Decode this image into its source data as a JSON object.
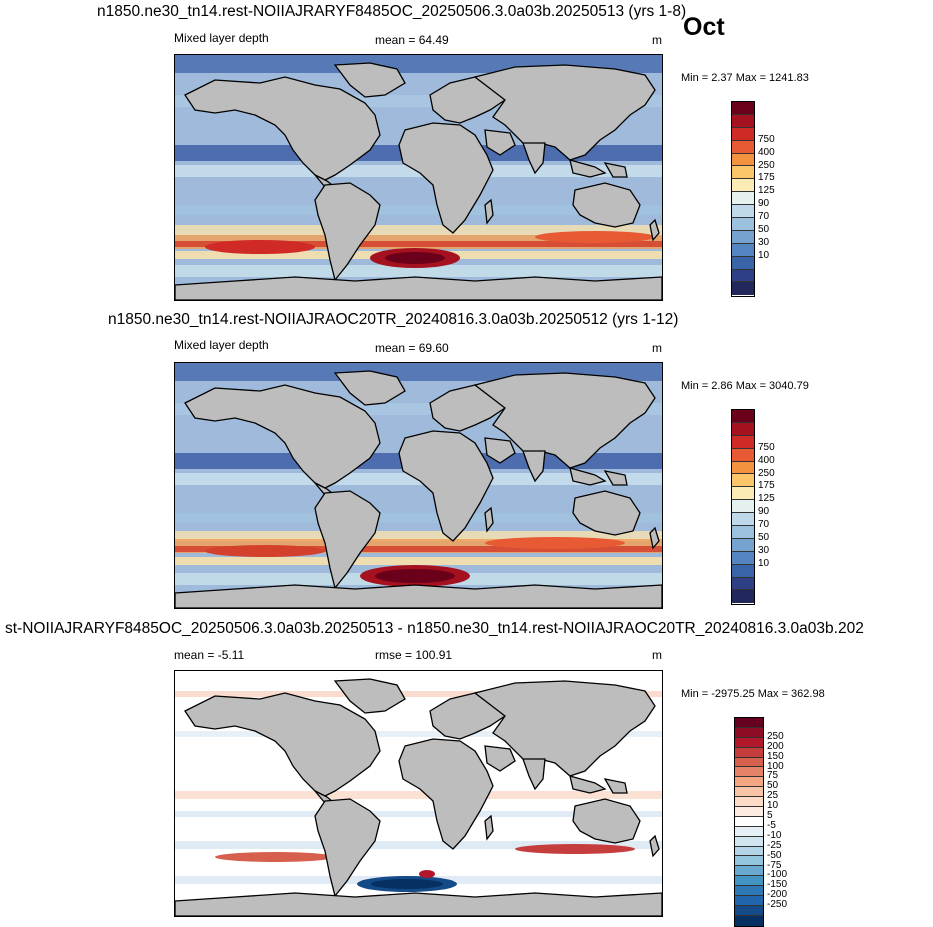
{
  "month": "Oct",
  "panels": [
    {
      "title": "n1850.ne30_tn14.rest-NOIIAJRARYF8485OC_20250506.3.0a03b.20250513 (yrs 1-8)",
      "left_label": "Mixed layer depth",
      "center_label": "mean =  64.49",
      "units": "m",
      "minmax": "Min =   2.37 Max = 1241.83",
      "colorbar": {
        "labels": [
          "750",
          "400",
          "250",
          "175",
          "125",
          "90",
          "70",
          "50",
          "30",
          "10"
        ],
        "colors": [
          "#6b001a",
          "#a5111f",
          "#cf2a25",
          "#e75a33",
          "#f3923f",
          "#fbc56a",
          "#fdebb5",
          "#e4f1ef",
          "#bfd9eb",
          "#9cc1de",
          "#76a2cf",
          "#5585c0",
          "#3a64a8",
          "#2e3f86",
          "#23285c"
        ]
      }
    },
    {
      "title": "n1850.ne30_tn14.rest-NOIIAJRAOC20TR_20240816.3.0a03b.20250512 (yrs 1-12)",
      "left_label": "Mixed layer depth",
      "center_label": "mean =  69.60",
      "units": "m",
      "minmax": "Min =   2.86 Max = 3040.79",
      "colorbar": {
        "labels": [
          "750",
          "400",
          "250",
          "175",
          "125",
          "90",
          "70",
          "50",
          "30",
          "10"
        ],
        "colors": [
          "#6b001a",
          "#a5111f",
          "#cf2a25",
          "#e75a33",
          "#f3923f",
          "#fbc56a",
          "#fdebb5",
          "#e4f1ef",
          "#bfd9eb",
          "#9cc1de",
          "#76a2cf",
          "#5585c0",
          "#3a64a8",
          "#2e3f86",
          "#23285c"
        ]
      }
    },
    {
      "title": "st-NOIIAJRARYF8485OC_20250506.3.0a03b.20250513 - n1850.ne30_tn14.rest-NOIIAJRAOC20TR_20240816.3.0a03b.202",
      "left_label": "mean =  -5.11",
      "center_label": "rmse = 100.91",
      "units": "m",
      "minmax": "Min = -2975.25 Max = 362.98",
      "colorbar": {
        "labels": [
          "250",
          "200",
          "150",
          "100",
          "75",
          "50",
          "25",
          "10",
          "5",
          "-5",
          "-10",
          "-25",
          "-50",
          "-75",
          "-100",
          "-150",
          "-200",
          "-250"
        ],
        "colors": [
          "#67001f",
          "#8e0c25",
          "#b2182b",
          "#c53e3d",
          "#d6604d",
          "#e58267",
          "#f4a582",
          "#f8c4a8",
          "#fddbc7",
          "#fdebe1",
          "#ffffff",
          "#e6eff6",
          "#d1e5f0",
          "#b4d4e8",
          "#92c5de",
          "#6aa9cf",
          "#4393c3",
          "#2e78b5",
          "#2166ac",
          "#134a87",
          "#053061"
        ]
      }
    }
  ]
}
